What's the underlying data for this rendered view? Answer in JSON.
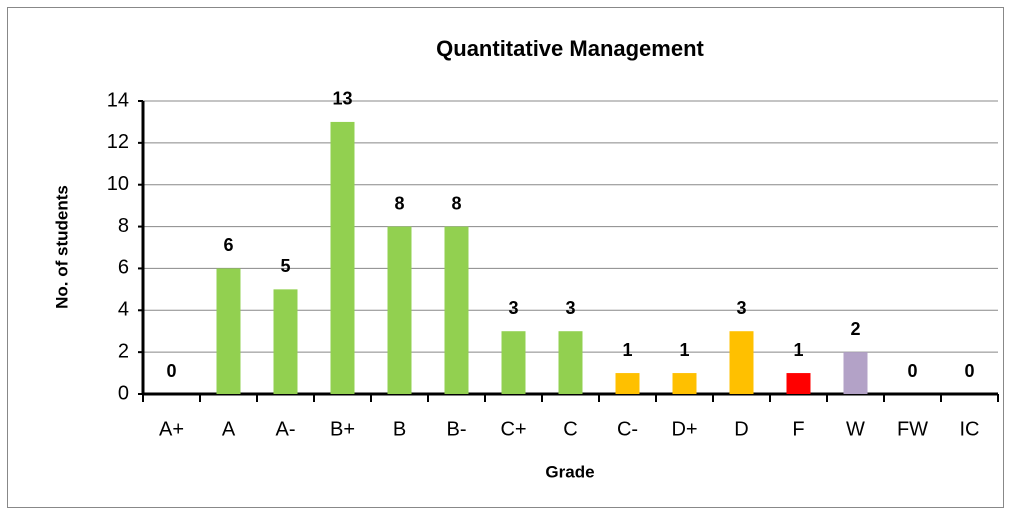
{
  "chart_data": {
    "type": "bar",
    "title": "Quantitative Management",
    "x_label": "Grade",
    "y_label": "No. of students",
    "categories": [
      "A+",
      "A",
      "A-",
      "B+",
      "B",
      "B-",
      "C+",
      "C",
      "C-",
      "D+",
      "D",
      "F",
      "W",
      "FW",
      "IC"
    ],
    "values": [
      0,
      6,
      5,
      13,
      8,
      8,
      3,
      3,
      1,
      1,
      3,
      1,
      2,
      0,
      0
    ],
    "colors": [
      "#92d050",
      "#92d050",
      "#92d050",
      "#92d050",
      "#92d050",
      "#92d050",
      "#92d050",
      "#92d050",
      "#ffc000",
      "#ffc000",
      "#ffc000",
      "#ff0000",
      "#b3a2c7",
      "#b3a2c7",
      "#b3a2c7"
    ],
    "ylim": [
      0,
      14
    ],
    "yticks": [
      0,
      2,
      4,
      6,
      8,
      10,
      12,
      14
    ],
    "grid": true
  }
}
